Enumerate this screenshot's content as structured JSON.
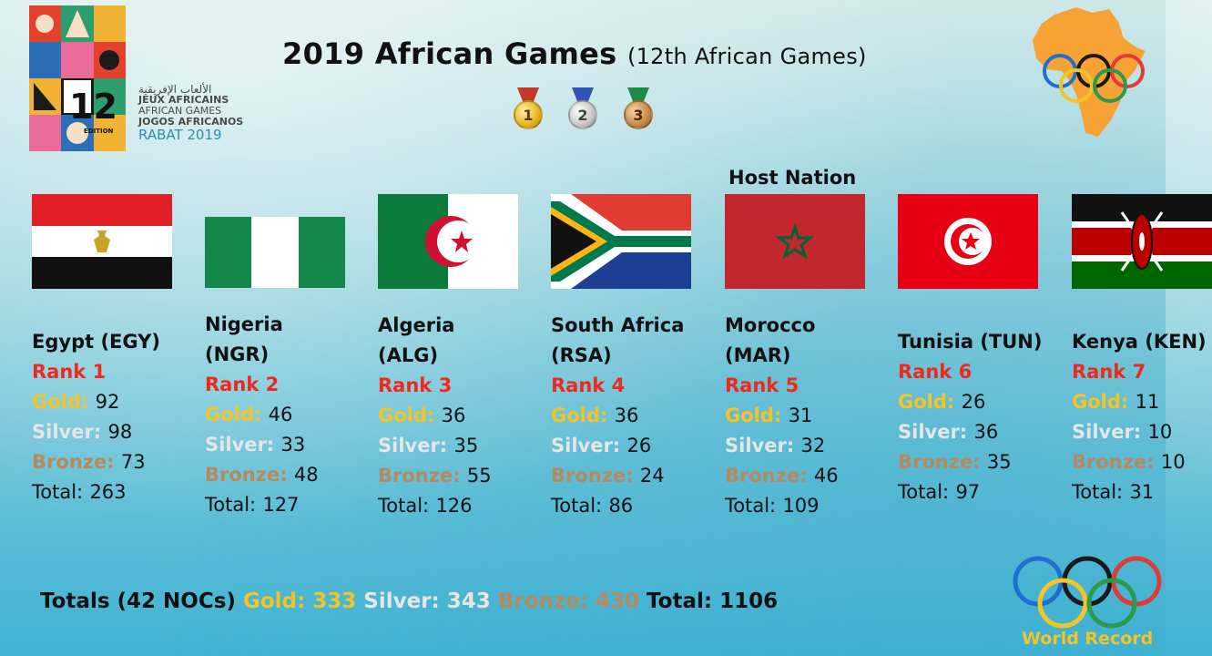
{
  "header": {
    "title": "2019 African Games",
    "subtitle": "(12th African Games)",
    "medals": [
      {
        "label": "1",
        "color": "#e6b422",
        "ribbon": "#c0392b"
      },
      {
        "label": "2",
        "color": "#c6c6c6",
        "ribbon": "#2f54b6"
      },
      {
        "label": "3",
        "color": "#c78a47",
        "ribbon": "#1f8a4c"
      }
    ]
  },
  "logo": {
    "number": "12",
    "edition": "EDITION",
    "lines": [
      "الألعاب الإفريقية",
      "JEUX AFRICAINS",
      "AFRICAN GAMES",
      "JOGOS AFRICANOS",
      "RABAT 2019"
    ]
  },
  "host_label": "Host Nation",
  "labels": {
    "gold": "Gold:",
    "silver": "Silver:",
    "bronze": "Bronze:",
    "total": "Total:"
  },
  "countries": [
    {
      "name": "Egypt (EGY)",
      "rank": "Rank 1",
      "gold": "92",
      "silver": "98",
      "bronze": "73",
      "total": "263",
      "flag": "egypt-flag"
    },
    {
      "name_lines": [
        "Nigeria",
        "(NGR)"
      ],
      "rank": "Rank 2",
      "gold": "46",
      "silver": "33",
      "bronze": "48",
      "total": "127",
      "flag": "nigeria-flag"
    },
    {
      "name_lines": [
        "Algeria",
        "(ALG)"
      ],
      "rank": "Rank 3",
      "gold": "36",
      "silver": "35",
      "bronze": "55",
      "total": "126",
      "flag": "algeria-flag"
    },
    {
      "name_lines": [
        "South Africa",
        "(RSA)"
      ],
      "rank": "Rank 4",
      "gold": "36",
      "silver": "26",
      "bronze": "24",
      "total": "86",
      "flag": "south-africa-flag"
    },
    {
      "name_lines": [
        "Morocco",
        "(MAR)"
      ],
      "rank": "Rank 5",
      "gold": "31",
      "silver": "32",
      "bronze": "46",
      "total": "109",
      "flag": "morocco-flag"
    },
    {
      "name": "Tunisia (TUN)",
      "rank": "Rank 6",
      "gold": "26",
      "silver": "36",
      "bronze": "35",
      "total": "97",
      "flag": "tunisia-flag"
    },
    {
      "name": "Kenya (KEN)",
      "rank": "Rank 7",
      "gold": "11",
      "silver": "10",
      "bronze": "10",
      "total": "31",
      "flag": "kenya-flag"
    }
  ],
  "totals": {
    "label": "Totals (42 NOCs)",
    "gold": "333",
    "silver": "343",
    "bronze": "430",
    "total": "1106"
  },
  "watermark": "World Record",
  "colors": {
    "rank": "#ee2a1e",
    "gold": "#f4c427",
    "silver": "#e6e6e6",
    "bronze": "#b58a5e",
    "africa": "#f7a234"
  }
}
